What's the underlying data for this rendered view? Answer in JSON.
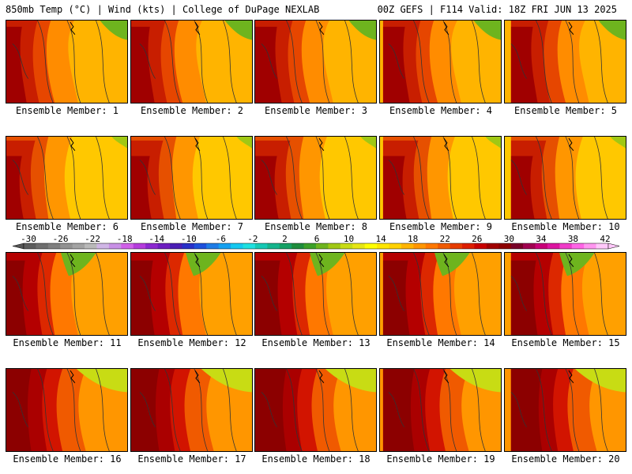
{
  "header": {
    "left": "850mb Temp (°C) | Wind (kts) | College of DuPage NEXLAB",
    "right": "00Z GEFS | F114 Valid: 18Z FRI JUN 13 2025"
  },
  "colorbar": {
    "labels": [
      "-30",
      "-26",
      "-22",
      "-18",
      "-14",
      "-10",
      "-6",
      "-2",
      "2",
      "6",
      "10",
      "14",
      "18",
      "22",
      "26",
      "30",
      "34",
      "38",
      "42"
    ],
    "colors": [
      "#5c5c5c",
      "#6e6e6e",
      "#7f7f7f",
      "#929292",
      "#a3a3a3",
      "#b9b9b9",
      "#d0b6e6",
      "#c890e6",
      "#d060e8",
      "#b43cdc",
      "#8c28d0",
      "#6e1ec0",
      "#4a1eb4",
      "#2830c8",
      "#1e50dc",
      "#1e7ce6",
      "#14a0f0",
      "#14c8f0",
      "#1ee0e0",
      "#14c8b4",
      "#14b48c",
      "#14a064",
      "#1e8c3c",
      "#3ca028",
      "#6eb41e",
      "#a0c814",
      "#c8dc14",
      "#e6e614",
      "#ffff00",
      "#ffe600",
      "#ffd200",
      "#ffb400",
      "#ff9600",
      "#ff7800",
      "#f05a00",
      "#e63c00",
      "#dc1e00",
      "#c80000",
      "#a00000",
      "#8c0000",
      "#780028",
      "#a00050",
      "#c80078",
      "#dc14a0",
      "#f03cc8",
      "#ff64e6",
      "#ff96f0",
      "#ffc8fa"
    ]
  },
  "rows": [
    [
      {
        "label": "Ensemble Member: 1"
      },
      {
        "label": "Ensemble Member: 2"
      },
      {
        "label": "Ensemble Member: 3"
      },
      {
        "label": "Ensemble Member: 4"
      },
      {
        "label": "Ensemble Member: 5"
      }
    ],
    [
      {
        "label": "Ensemble Member: 6"
      },
      {
        "label": "Ensemble Member: 7"
      },
      {
        "label": "Ensemble Member: 8"
      },
      {
        "label": "Ensemble Member: 9"
      },
      {
        "label": "Ensemble Member: 10"
      }
    ],
    [
      {
        "label": "Ensemble Member: 11"
      },
      {
        "label": "Ensemble Member: 12"
      },
      {
        "label": "Ensemble Member: 13"
      },
      {
        "label": "Ensemble Member: 14"
      },
      {
        "label": "Ensemble Member: 15"
      }
    ],
    [
      {
        "label": "Ensemble Member: 16"
      },
      {
        "label": "Ensemble Member: 17"
      },
      {
        "label": "Ensemble Member: 18"
      },
      {
        "label": "Ensemble Member: 19"
      },
      {
        "label": "Ensemble Member: 20"
      }
    ]
  ]
}
